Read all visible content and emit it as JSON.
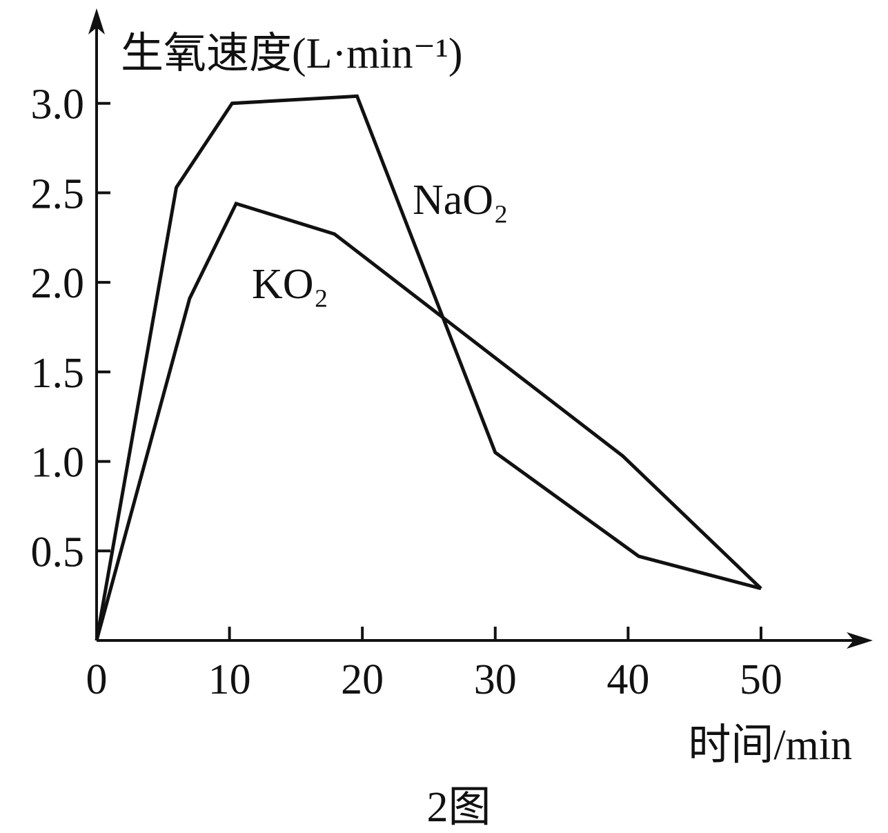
{
  "chart_data": {
    "type": "line",
    "y_label": "生氧速度(L·min⁻¹)",
    "x_label": "时间/min",
    "caption": "2图",
    "xlim": [
      0,
      58
    ],
    "ylim": [
      0,
      3.5
    ],
    "xticks": [
      0,
      10,
      20,
      30,
      40,
      50
    ],
    "yticks": [
      0.5,
      {
        "value": 1,
        "label": "1.0"
      },
      1.5,
      {
        "value": 2,
        "label": "2.0"
      },
      2.5,
      {
        "value": 3,
        "label": "3.0"
      }
    ],
    "series": [
      {
        "name": "NaO₂",
        "color": "#111111",
        "x": [
          0,
          6,
          10.2,
          19.6,
          30,
          40.8,
          50
        ],
        "values": [
          0,
          2.53,
          3.0,
          3.04,
          1.05,
          0.47,
          0.29
        ]
      },
      {
        "name": "KO₂",
        "color": "#111111",
        "x": [
          0,
          7,
          10.5,
          17.9,
          39.6,
          50
        ],
        "values": [
          0,
          1.91,
          2.44,
          2.27,
          1.03,
          0.29
        ]
      }
    ]
  }
}
